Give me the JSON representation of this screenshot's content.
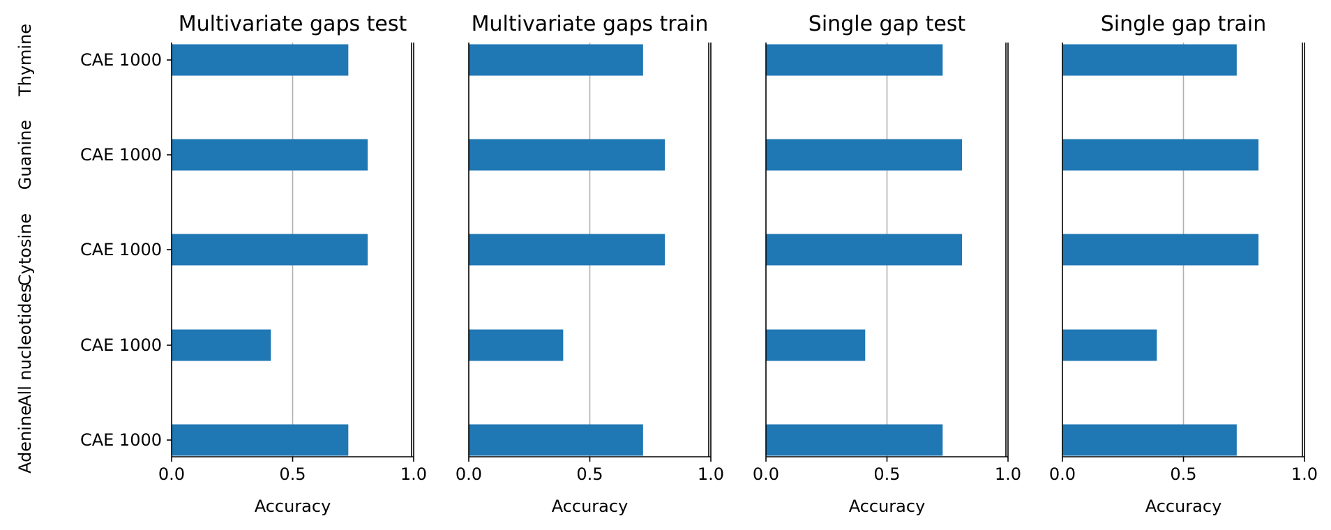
{
  "chart_data": [
    {
      "type": "bar",
      "orientation": "horizontal",
      "title": "Multivariate gaps test",
      "xlabel": "Accuracy",
      "xlim": [
        0,
        1.0
      ],
      "xticks": [
        "0.0",
        "0.5",
        "1.0"
      ],
      "xgrid_at": [
        0.5
      ],
      "categories": [
        "CAE 1000",
        "CAE 1000",
        "CAE 1000",
        "CAE 1000",
        "CAE 1000"
      ],
      "group_labels": [
        "Adenine",
        "All nucleotides",
        "Cytosine",
        "Guanine",
        "Thymine"
      ],
      "values": [
        0.73,
        0.41,
        0.81,
        0.81,
        0.73
      ],
      "color": "#1f77b4"
    },
    {
      "type": "bar",
      "orientation": "horizontal",
      "title": "Multivariate gaps train",
      "xlabel": "Accuracy",
      "xlim": [
        0,
        1.0
      ],
      "xticks": [
        "0.0",
        "0.5",
        "1.0"
      ],
      "xgrid_at": [
        0.5
      ],
      "categories": [
        "CAE 1000",
        "CAE 1000",
        "CAE 1000",
        "CAE 1000",
        "CAE 1000"
      ],
      "values": [
        0.72,
        0.39,
        0.81,
        0.81,
        0.72
      ],
      "color": "#1f77b4"
    },
    {
      "type": "bar",
      "orientation": "horizontal",
      "title": "Single gap test",
      "xlabel": "Accuracy",
      "xlim": [
        0,
        1.0
      ],
      "xticks": [
        "0.0",
        "0.5",
        "1.0"
      ],
      "xgrid_at": [
        0.5
      ],
      "categories": [
        "CAE 1000",
        "CAE 1000",
        "CAE 1000",
        "CAE 1000",
        "CAE 1000"
      ],
      "values": [
        0.73,
        0.41,
        0.81,
        0.81,
        0.73
      ],
      "color": "#1f77b4"
    },
    {
      "type": "bar",
      "orientation": "horizontal",
      "title": "Single gap train",
      "xlabel": "Accuracy",
      "xlim": [
        0,
        1.0
      ],
      "xticks": [
        "0.0",
        "0.5",
        "1.0"
      ],
      "xgrid_at": [
        0.5
      ],
      "categories": [
        "CAE 1000",
        "CAE 1000",
        "CAE 1000",
        "CAE 1000",
        "CAE 1000"
      ],
      "values": [
        0.72,
        0.39,
        0.81,
        0.81,
        0.72
      ],
      "color": "#1f77b4"
    }
  ]
}
